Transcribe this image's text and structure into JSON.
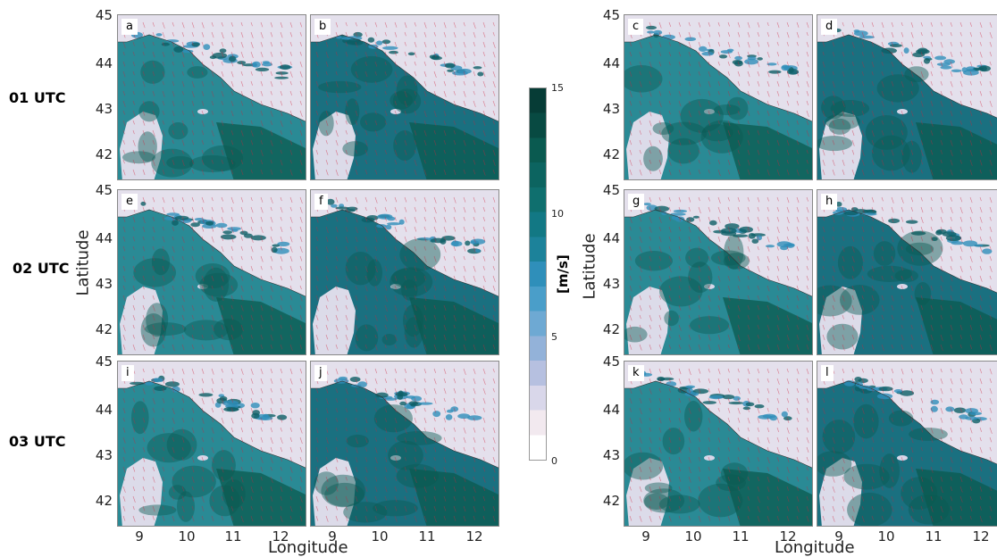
{
  "chart_data": {
    "type": "heatmap",
    "row_labels": [
      "01 UTC",
      "02 UTC",
      "03 UTC"
    ],
    "panel_labels": [
      "a",
      "b",
      "c",
      "d",
      "e",
      "f",
      "g",
      "h",
      "i",
      "j",
      "k",
      "l"
    ],
    "ylabel": "Latitude",
    "xlabel": "Longitude",
    "yticks": [
      "45",
      "44",
      "43",
      "42"
    ],
    "xticks": [
      "9",
      "10",
      "11",
      "12"
    ],
    "lat_range": [
      41.6,
      45.0
    ],
    "lon_range": [
      8.5,
      12.5
    ],
    "colorbar": {
      "label": "[m/s]",
      "ticks": [
        "15",
        "10",
        "5",
        "0"
      ],
      "range": [
        0,
        15
      ],
      "colors": [
        "#ffffff",
        "#f2e9ef",
        "#d9d7ea",
        "#b6c0e0",
        "#93b2d9",
        "#6ea9d3",
        "#4a9ec9",
        "#2f8fba",
        "#1c829a",
        "#127884",
        "#0f6f6e",
        "#0c6460",
        "#0a5a50",
        "#084a42",
        "#063c36"
      ]
    }
  }
}
